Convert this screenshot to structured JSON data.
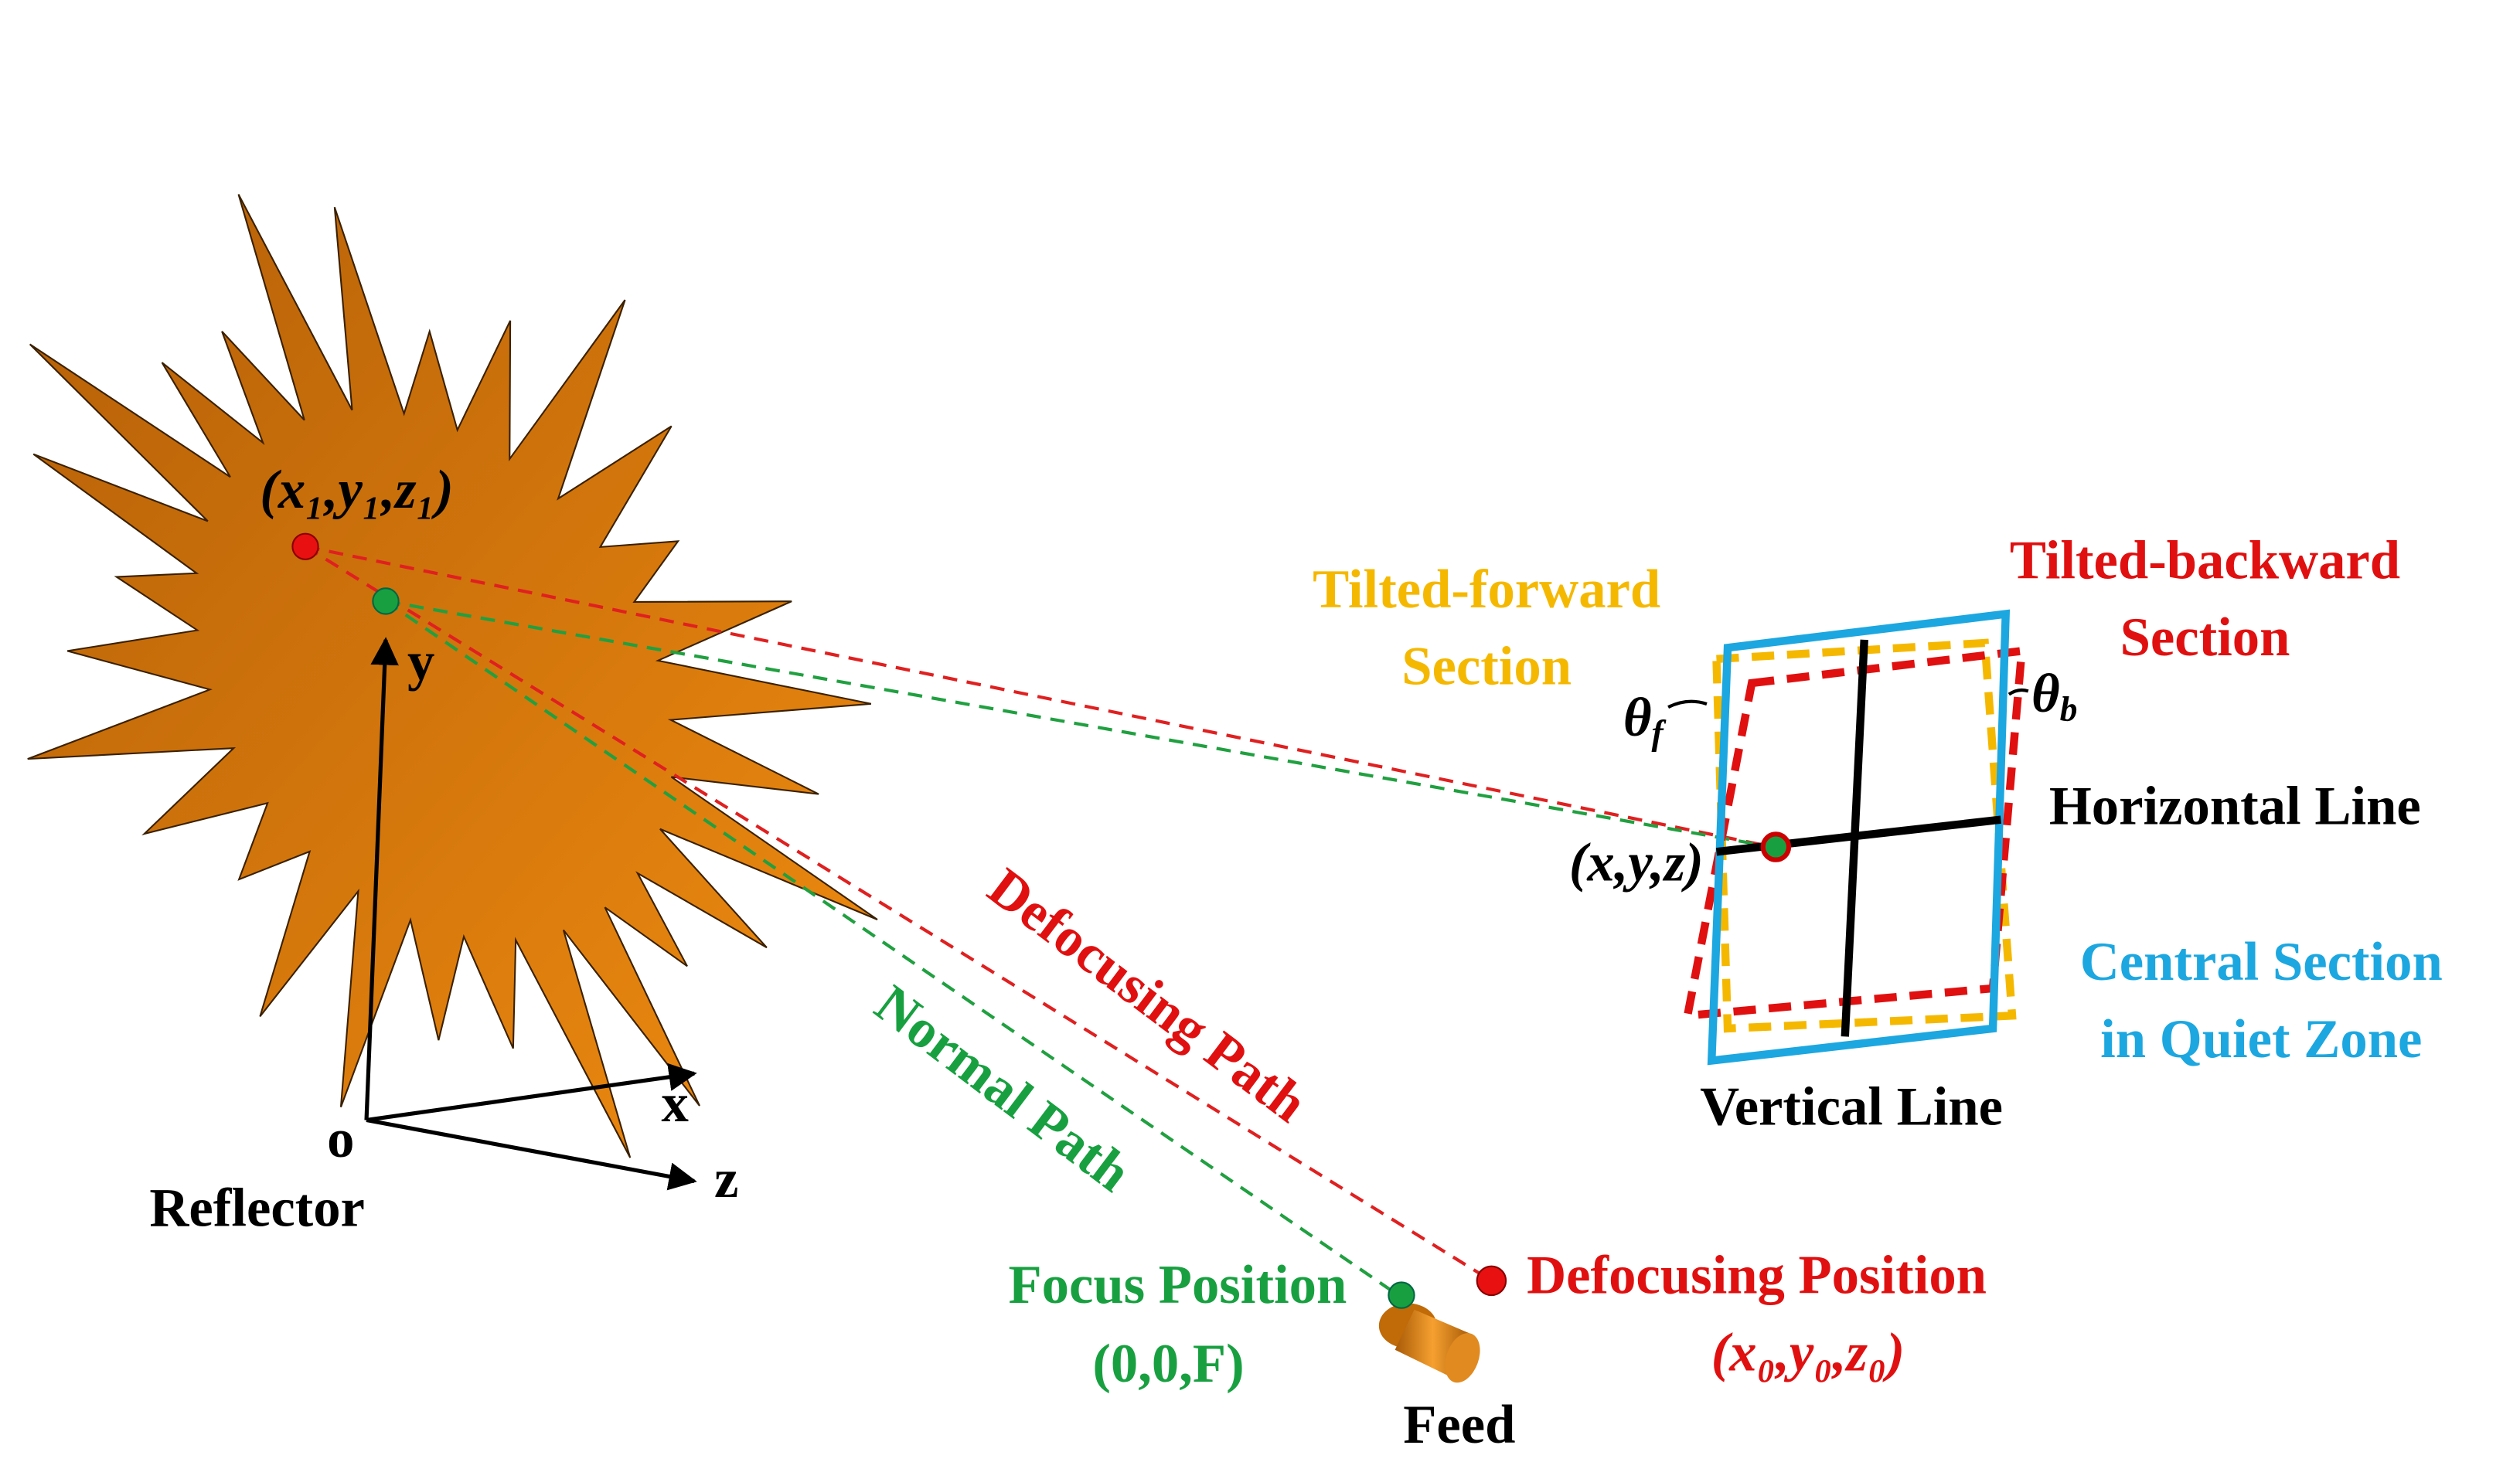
{
  "reflector": {
    "point_label": "(x₁,y₁,z₁)",
    "axis_y": "y",
    "axis_x": "x",
    "axis_z": "z",
    "origin": "o",
    "label": "Reflector"
  },
  "paths": {
    "defocusing": "Defocusing Path",
    "normal": "Normal Path"
  },
  "feed": {
    "focus_label": "Focus Position",
    "focus_coords": "(0,0,F)",
    "label": "Feed",
    "defocus_label": "Defocusing Position",
    "defocus_coords": "(x₀,y₀,z₀)"
  },
  "quiet_zone": {
    "tilted_forward": [
      "Tilted-forward",
      "Section"
    ],
    "tilted_backward": [
      "Tilted-backward",
      "Section"
    ],
    "theta_f": {
      "symbol": "θ",
      "sub": "f"
    },
    "theta_b": {
      "symbol": "θ",
      "sub": "b"
    },
    "horizontal": "Horizontal Line",
    "point": "(x,y,z)",
    "central": [
      "Central Section",
      "in Quiet Zone"
    ],
    "vertical": "Vertical Line"
  }
}
